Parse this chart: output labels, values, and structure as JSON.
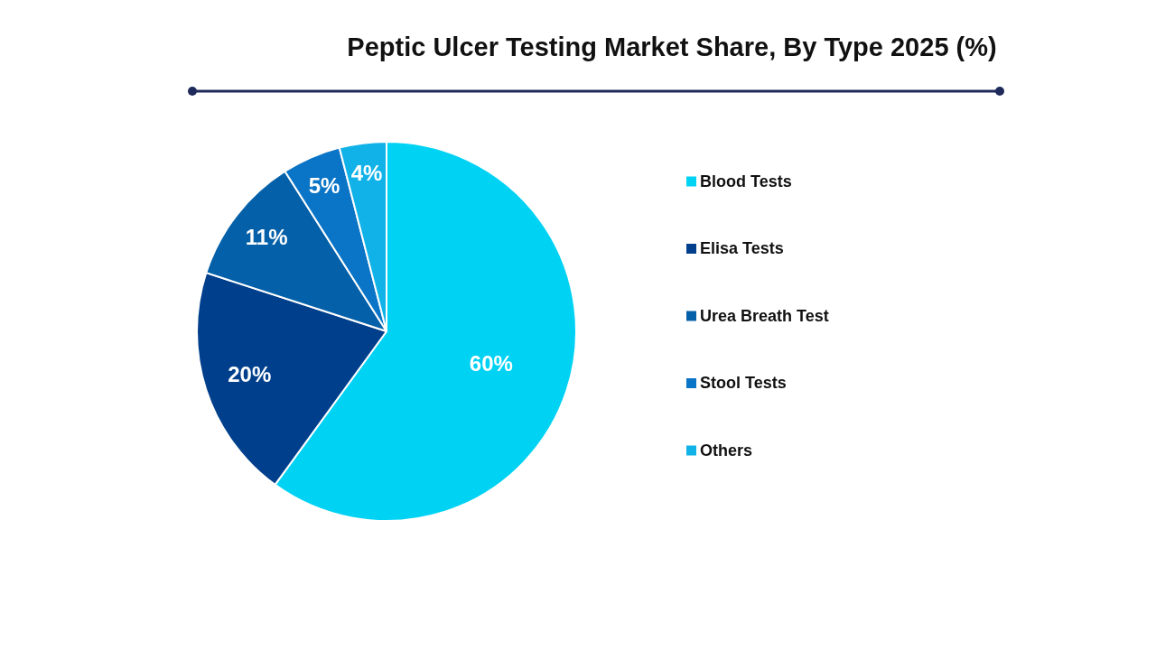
{
  "chart_data": {
    "type": "pie",
    "title": "Peptic Ulcer Testing Market Share, By Type 2025 (%)",
    "categories": [
      "Blood Tests",
      "Elisa Tests",
      "Urea Breath Test",
      "Stool Tests",
      "Others"
    ],
    "values": [
      60,
      20,
      11,
      5,
      4
    ],
    "colors": [
      "#00d2f4",
      "#003f8c",
      "#0460a8",
      "#0a74c6",
      "#10b2e8"
    ],
    "value_labels": [
      "60%",
      "20%",
      "11%",
      "5%",
      "4%"
    ],
    "legend": "right"
  }
}
